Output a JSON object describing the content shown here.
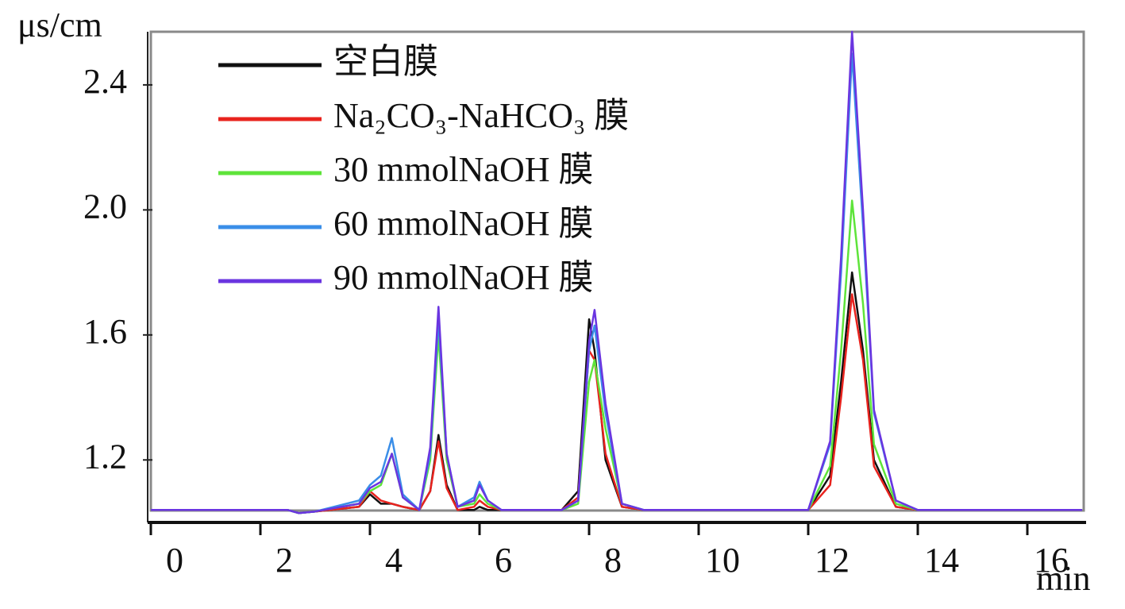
{
  "chart_data": {
    "type": "line",
    "y_label": "μs/cm",
    "x_label": "min",
    "x": [
      0,
      2.5,
      2.7,
      3.0,
      3.8,
      4.0,
      4.2,
      4.4,
      4.6,
      4.9,
      5.1,
      5.25,
      5.4,
      5.6,
      5.9,
      6.0,
      6.15,
      6.4,
      7.5,
      7.8,
      8.0,
      8.1,
      8.3,
      8.6,
      9.0,
      12.0,
      12.4,
      12.6,
      12.8,
      13.0,
      13.2,
      13.6,
      14.0,
      17
    ],
    "series": [
      {
        "name": "空白膜",
        "color": "#111111",
        "values": [
          1.04,
          1.04,
          1.03,
          1.035,
          1.05,
          1.09,
          1.06,
          1.06,
          1.05,
          1.04,
          1.1,
          1.28,
          1.12,
          1.04,
          1.04,
          1.05,
          1.04,
          1.04,
          1.04,
          1.1,
          1.65,
          1.55,
          1.2,
          1.05,
          1.04,
          1.04,
          1.15,
          1.45,
          1.8,
          1.55,
          1.2,
          1.05,
          1.04,
          1.04
        ]
      },
      {
        "name": "Na₂CO₃-NaHCO₃ 膜",
        "color": "#e8231e",
        "values": [
          1.04,
          1.04,
          1.03,
          1.035,
          1.05,
          1.1,
          1.07,
          1.06,
          1.05,
          1.04,
          1.1,
          1.26,
          1.11,
          1.04,
          1.05,
          1.07,
          1.05,
          1.04,
          1.04,
          1.08,
          1.55,
          1.52,
          1.22,
          1.05,
          1.04,
          1.04,
          1.12,
          1.4,
          1.73,
          1.52,
          1.18,
          1.05,
          1.04,
          1.04
        ]
      },
      {
        "name": "30 mmolNaOH 膜",
        "color": "#5ee43a",
        "values": [
          1.04,
          1.04,
          1.03,
          1.035,
          1.06,
          1.1,
          1.12,
          1.22,
          1.08,
          1.04,
          1.2,
          1.6,
          1.2,
          1.05,
          1.06,
          1.09,
          1.06,
          1.04,
          1.04,
          1.06,
          1.45,
          1.52,
          1.3,
          1.06,
          1.04,
          1.04,
          1.18,
          1.55,
          2.03,
          1.7,
          1.25,
          1.06,
          1.04,
          1.04
        ]
      },
      {
        "name": "60 mmolNaOH 膜",
        "color": "#3a8ee8",
        "values": [
          1.04,
          1.04,
          1.03,
          1.035,
          1.07,
          1.12,
          1.15,
          1.27,
          1.09,
          1.04,
          1.22,
          1.65,
          1.22,
          1.05,
          1.08,
          1.13,
          1.07,
          1.04,
          1.04,
          1.07,
          1.55,
          1.63,
          1.35,
          1.06,
          1.04,
          1.04,
          1.25,
          1.8,
          2.5,
          1.95,
          1.35,
          1.07,
          1.04,
          1.04
        ]
      },
      {
        "name": "90 mmolNaOH 膜",
        "color": "#6a35e0",
        "values": [
          1.04,
          1.04,
          1.03,
          1.035,
          1.06,
          1.11,
          1.13,
          1.22,
          1.08,
          1.04,
          1.24,
          1.69,
          1.22,
          1.05,
          1.07,
          1.12,
          1.07,
          1.04,
          1.04,
          1.07,
          1.58,
          1.68,
          1.38,
          1.06,
          1.04,
          1.04,
          1.26,
          1.85,
          2.57,
          2.0,
          1.36,
          1.07,
          1.04,
          1.04
        ]
      }
    ],
    "xlim": [
      0,
      17
    ],
    "xticks": [
      0,
      2,
      4,
      6,
      8,
      10,
      12,
      14,
      16
    ],
    "ylim": [
      1.0,
      2.57
    ],
    "yticks": [
      1.2,
      1.6,
      {
        "value": 2,
        "label": "2.0"
      },
      2.4
    ]
  }
}
